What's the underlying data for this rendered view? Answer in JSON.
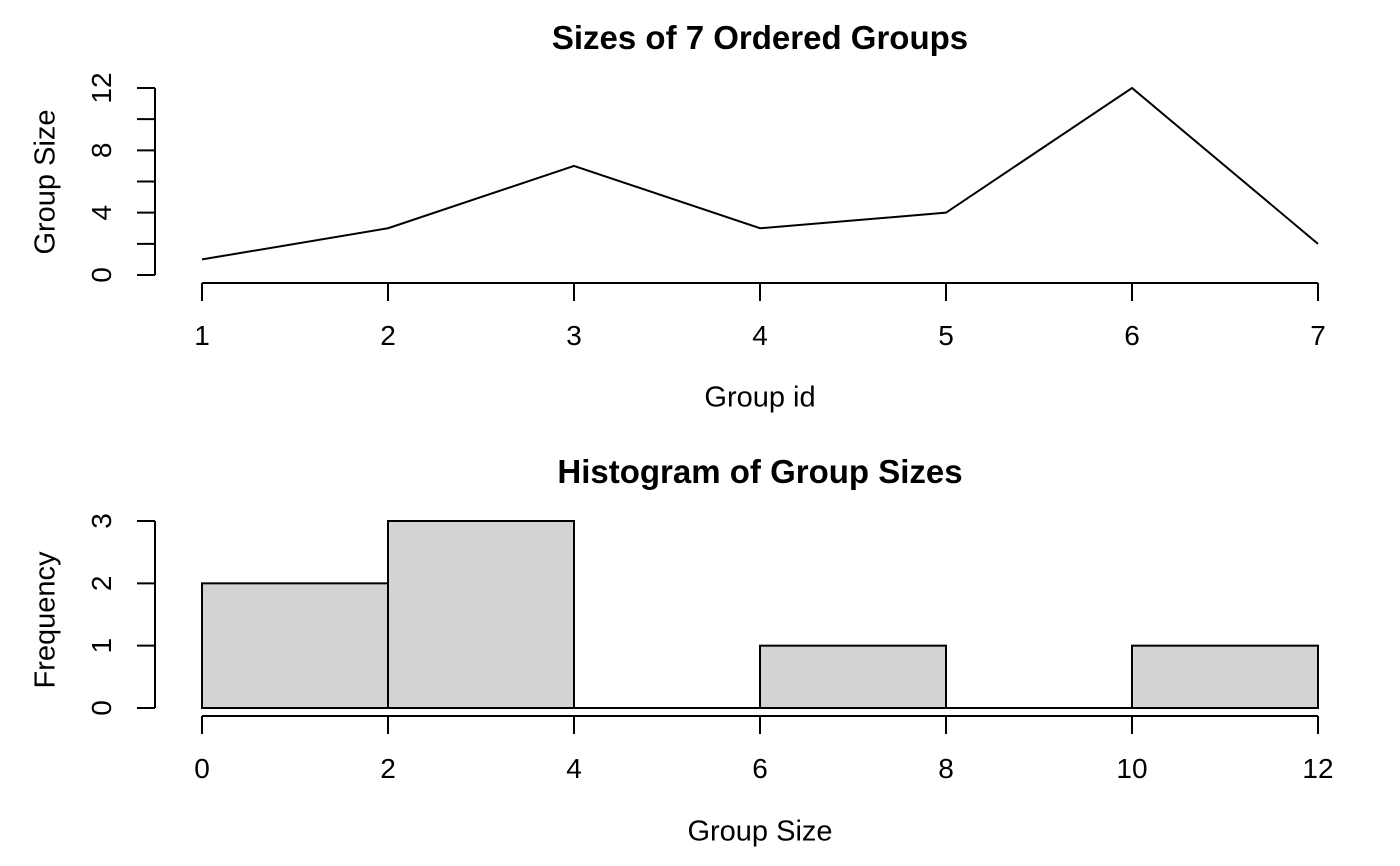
{
  "figure": {
    "background": "#ffffff",
    "foreground": "#000000"
  },
  "chart_data": [
    {
      "type": "line",
      "title": "Sizes of 7 Ordered Groups",
      "xlabel": "Group id",
      "ylabel": "Group Size",
      "x": [
        1,
        2,
        3,
        4,
        5,
        6,
        7
      ],
      "y": [
        1,
        3,
        7,
        3,
        4,
        12,
        2
      ],
      "xlim": [
        1,
        7
      ],
      "ylim": [
        0,
        12
      ],
      "xticks": [
        1,
        2,
        3,
        4,
        5,
        6,
        7
      ],
      "xtick_labels": [
        "1",
        "2",
        "3",
        "4",
        "5",
        "6",
        "7"
      ],
      "yticks": [
        0,
        2,
        4,
        6,
        8,
        10,
        12
      ],
      "ytick_labels_shown": [
        0,
        4,
        8,
        12
      ],
      "grid": false,
      "legend": null,
      "line_color": "#000000"
    },
    {
      "type": "bar",
      "subtype": "histogram",
      "title": "Histogram of Group Sizes",
      "xlabel": "Group Size",
      "ylabel": "Frequency",
      "bins": [
        {
          "from": 0,
          "to": 2,
          "count": 2
        },
        {
          "from": 2,
          "to": 4,
          "count": 3
        },
        {
          "from": 4,
          "to": 6,
          "count": 0
        },
        {
          "from": 6,
          "to": 8,
          "count": 1
        },
        {
          "from": 8,
          "to": 10,
          "count": 0
        },
        {
          "from": 10,
          "to": 12,
          "count": 1
        }
      ],
      "xlim": [
        0,
        12
      ],
      "ylim": [
        0,
        3
      ],
      "xticks": [
        0,
        2,
        4,
        6,
        8,
        10,
        12
      ],
      "xtick_labels": [
        "0",
        "2",
        "4",
        "6",
        "8",
        "10",
        "12"
      ],
      "yticks": [
        0,
        1,
        2,
        3
      ],
      "ytick_labels_shown": [
        0,
        1,
        2,
        3
      ],
      "grid": false,
      "legend": null,
      "bar_fill": "#d3d3d3",
      "bar_stroke": "#000000"
    }
  ]
}
